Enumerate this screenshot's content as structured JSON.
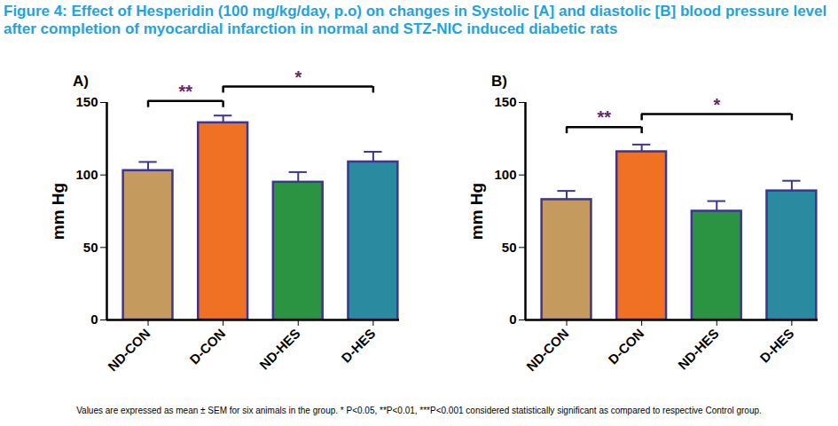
{
  "title": "Figure 4: Effect of Hesperidin (100 mg/kg/day, p.o) on changes in Systolic [A] and diastolic [B] blood pressure level after completion of myocardial infarction in normal and STZ-NIC induced diabetic rats",
  "caption": "Values are expressed as mean ± SEM for six animals in the group. * P<0.05, **P<0.01, ***P<0.001 considered statistically significant as compared to respective Control group.",
  "chart_data": [
    {
      "type": "bar",
      "title": "A)",
      "ylabel": "mm Hg",
      "categories": [
        "ND-CON",
        "D-CON",
        "ND-HES",
        "D-HES"
      ],
      "values": [
        103,
        136,
        95,
        109
      ],
      "errors": [
        6,
        5,
        7,
        7
      ],
      "colors": [
        "#c49a5e",
        "#f07124",
        "#2b9443",
        "#2a8aa0"
      ],
      "ylim": [
        0,
        150
      ],
      "yticks": [
        0,
        50,
        100,
        150
      ],
      "annotations": [
        {
          "from": "ND-CON",
          "to": "D-CON",
          "y": 151,
          "label": "**"
        },
        {
          "from": "D-CON",
          "to": "D-HES",
          "y": 161,
          "label": "*"
        }
      ]
    },
    {
      "type": "bar",
      "title": "B)",
      "ylabel": "mm Hg",
      "categories": [
        "ND-CON",
        "D-CON",
        "ND-HES",
        "D-HES"
      ],
      "values": [
        83,
        116,
        75,
        89
      ],
      "errors": [
        6,
        5,
        7,
        7
      ],
      "colors": [
        "#c49a5e",
        "#f07124",
        "#2b9443",
        "#2a8aa0"
      ],
      "ylim": [
        0,
        150
      ],
      "yticks": [
        0,
        50,
        100,
        150
      ],
      "annotations": [
        {
          "from": "ND-CON",
          "to": "D-CON",
          "y": 133,
          "label": "**"
        },
        {
          "from": "D-CON",
          "to": "D-HES",
          "y": 142,
          "label": "*"
        }
      ]
    }
  ]
}
